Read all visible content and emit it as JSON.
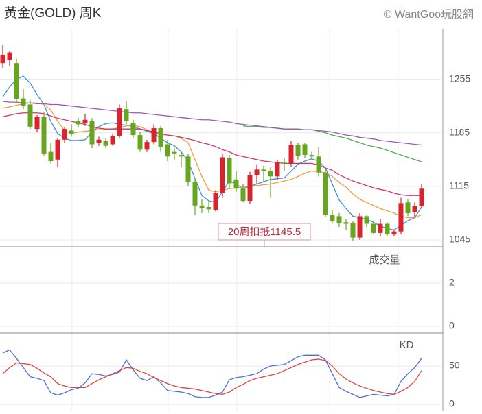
{
  "chart_data": [
    {
      "type": "candlestick",
      "title": "黃金(GOLD) 周K",
      "credit": "© WantGoo玩股網",
      "annotation": "20周扣抵1145.5",
      "up_color": "#d9232d",
      "down_color": "#66a61e",
      "ylim": [
        1036,
        1321
      ],
      "yticks": [
        1045,
        1115,
        1185,
        1255
      ],
      "grid": true,
      "open": [
        1276,
        1280,
        1276,
        1230,
        1222,
        1190,
        1206,
        1160,
        1150,
        1176,
        1188,
        1200,
        1198,
        1200,
        1172,
        1174,
        1170,
        1181,
        1216,
        1198,
        1182,
        1163,
        1173,
        1191,
        1170,
        1160,
        1156,
        1154,
        1121,
        1090,
        1088,
        1084,
        1106,
        1152,
        1124,
        1112,
        1096,
        1130,
        1137,
        1135,
        1128,
        1146,
        1145,
        1169,
        1170,
        1156,
        1154,
        1133,
        1078,
        1076,
        1068,
        1067,
        1048,
        1076,
        1066,
        1054,
        1066,
        1052,
        1056,
        1094,
        1081,
        1089
      ],
      "high": [
        1300,
        1292,
        1282,
        1242,
        1228,
        1208,
        1212,
        1172,
        1178,
        1192,
        1196,
        1205,
        1210,
        1204,
        1180,
        1178,
        1184,
        1222,
        1226,
        1202,
        1186,
        1176,
        1196,
        1194,
        1176,
        1165,
        1160,
        1158,
        1124,
        1098,
        1095,
        1110,
        1158,
        1156,
        1135,
        1118,
        1134,
        1144,
        1142,
        1140,
        1150,
        1152,
        1174,
        1172,
        1172,
        1160,
        1166,
        1138,
        1084,
        1080,
        1072,
        1070,
        1080,
        1078,
        1070,
        1072,
        1068,
        1058,
        1100,
        1098,
        1094,
        1118
      ],
      "low": [
        1270,
        1272,
        1224,
        1216,
        1190,
        1186,
        1155,
        1145,
        1140,
        1172,
        1180,
        1192,
        1194,
        1165,
        1168,
        1165,
        1168,
        1178,
        1196,
        1178,
        1160,
        1160,
        1170,
        1160,
        1148,
        1150,
        1140,
        1115,
        1078,
        1080,
        1080,
        1082,
        1100,
        1112,
        1108,
        1094,
        1092,
        1118,
        1120,
        1100,
        1124,
        1135,
        1140,
        1150,
        1152,
        1150,
        1128,
        1075,
        1066,
        1062,
        1058,
        1044,
        1045,
        1062,
        1052,
        1050,
        1050,
        1050,
        1052,
        1076,
        1074,
        1086
      ],
      "close": [
        1287,
        1290,
        1229,
        1220,
        1193,
        1206,
        1158,
        1148,
        1176,
        1190,
        1184,
        1196,
        1202,
        1170,
        1176,
        1168,
        1181,
        1217,
        1200,
        1182,
        1163,
        1173,
        1191,
        1166,
        1154,
        1158,
        1154,
        1121,
        1090,
        1087,
        1085,
        1106,
        1153,
        1119,
        1112,
        1096,
        1130,
        1137,
        1135,
        1128,
        1146,
        1145,
        1169,
        1155,
        1156,
        1154,
        1133,
        1078,
        1070,
        1067,
        1066,
        1048,
        1076,
        1066,
        1054,
        1066,
        1052,
        1056,
        1093,
        1080,
        1089,
        1112
      ],
      "series": [
        {
          "color": "#3a8fd9",
          "values": [
            1232,
            1245,
            1255,
            1259,
            1250,
            1235,
            1222,
            1200,
            1184,
            1178,
            1175,
            1175,
            1176,
            1186,
            1193,
            1197,
            1198,
            1196,
            1195,
            1193,
            1190,
            1187,
            1184,
            1178,
            1172,
            1168,
            1160,
            1148,
            1125,
            1103,
            1096,
            1094,
            1108,
            1122,
            1118,
            1112,
            1115,
            1118,
            1121,
            1124,
            1125,
            1126,
            1135,
            1144,
            1148,
            1151,
            1148,
            1139,
            1118,
            1097,
            1086,
            1076,
            1074,
            1072,
            1068,
            1063,
            1060,
            1058,
            1064,
            1070,
            1074,
            1088
          ]
        },
        {
          "color": "#f39c3c",
          "values": [
            1217,
            1219,
            1221,
            1223,
            1224,
            1224,
            1222,
            1215,
            1200,
            1188,
            1184,
            1186,
            1187,
            1188,
            1189,
            1189,
            1190,
            1192,
            1194,
            1195,
            1193,
            1189,
            1185,
            1183,
            1182,
            1181,
            1178,
            1172,
            1150,
            1128,
            1110,
            1108,
            1110,
            1112,
            1113,
            1114,
            1115,
            1116,
            1117,
            1118,
            1120,
            1122,
            1124,
            1128,
            1132,
            1135,
            1134,
            1133,
            1128,
            1120,
            1114,
            1105,
            1098,
            1094,
            1090,
            1086,
            1083,
            1080,
            1076,
            1074,
            1074,
            1078
          ]
        },
        {
          "color": "#d6336c",
          "values": [
            1206,
            1208,
            1210,
            1211,
            1211,
            1211,
            1210,
            1207,
            1204,
            1202,
            1200,
            1198,
            1196,
            1193,
            1191,
            1190,
            1190,
            1190,
            1190,
            1190,
            1190,
            1188,
            1186,
            1184,
            1182,
            1181,
            1179,
            1177,
            1175,
            1172,
            1170,
            1167,
            1163,
            1160,
            1156,
            1154,
            1152,
            1150,
            1148,
            1147,
            1146,
            1145,
            1145,
            1145,
            1145,
            1145,
            1143,
            1139,
            1136,
            1130,
            1126,
            1122,
            1119,
            1116,
            1113,
            1111,
            1109,
            1106,
            1104,
            1103,
            1103,
            1103
          ]
        },
        {
          "color": "#4cb04c",
          "values": [
            null,
            null,
            null,
            null,
            null,
            null,
            null,
            null,
            null,
            null,
            null,
            null,
            null,
            null,
            null,
            null,
            null,
            null,
            null,
            null,
            null,
            null,
            null,
            null,
            null,
            null,
            null,
            null,
            null,
            null,
            null,
            null,
            null,
            null,
            null,
            1194,
            1193,
            1193,
            1192,
            1192,
            1191,
            1190,
            1190,
            1189,
            1189,
            1189,
            1187,
            1185,
            1182,
            1180,
            1178,
            1175,
            1172,
            1169,
            1167,
            1165,
            1162,
            1159,
            1156,
            1153,
            1150,
            1147
          ]
        },
        {
          "color": "#9b59b6",
          "values": [
            1226,
            1225,
            1225,
            1224,
            1224,
            1223,
            1223,
            1222,
            1222,
            1221,
            1220,
            1219,
            1218,
            1217,
            1216,
            1215,
            1214,
            1213,
            1212,
            1211,
            1211,
            1210,
            1209,
            1208,
            1207,
            1206,
            1205,
            1204,
            1203,
            1202,
            1202,
            1201,
            1200,
            1199,
            1197,
            1196,
            1195,
            1194,
            1193,
            1192,
            1191,
            1190,
            1190,
            1190,
            1189,
            1189,
            1188,
            1187,
            1186,
            1184,
            1182,
            1181,
            1179,
            1178,
            1177,
            1175,
            1174,
            1173,
            1172,
            1171,
            1170,
            1169
          ]
        }
      ]
    },
    {
      "type": "volume",
      "annotation": "成交量",
      "ylim": [
        -0.29,
        3.68
      ],
      "yticks": [
        0,
        2
      ],
      "grid": true
    },
    {
      "type": "line",
      "annotation": "KD",
      "ylim": [
        -9,
        92
      ],
      "yticks": [
        0,
        50
      ],
      "grid": true,
      "series": [
        {
          "color": "#4a6fd8",
          "values": [
            67,
            71,
            60,
            48,
            36,
            34,
            31,
            15,
            12,
            15,
            19,
            21,
            28,
            40,
            39,
            37,
            39,
            42,
            58,
            45,
            34,
            31,
            36,
            28,
            18,
            17,
            16,
            14,
            10,
            9,
            9,
            12,
            16,
            32,
            35,
            36,
            38,
            40,
            46,
            50,
            51,
            52,
            57,
            62,
            64,
            64,
            64,
            58,
            40,
            22,
            17,
            13,
            9,
            11,
            13,
            12,
            11,
            13,
            30,
            40,
            48,
            60
          ]
        },
        {
          "color": "#e0443e",
          "values": [
            40,
            48,
            54,
            53,
            52,
            47,
            41,
            36,
            27,
            24,
            22,
            22,
            22,
            27,
            32,
            36,
            40,
            44,
            48,
            47,
            43,
            40,
            35,
            31,
            27,
            24,
            22,
            21,
            20,
            18,
            16,
            14,
            13,
            16,
            22,
            26,
            31,
            34,
            36,
            38,
            40,
            44,
            48,
            52,
            55,
            58,
            59,
            57,
            50,
            40,
            33,
            28,
            24,
            21,
            18,
            16,
            14,
            13,
            17,
            22,
            30,
            44
          ]
        }
      ]
    }
  ]
}
